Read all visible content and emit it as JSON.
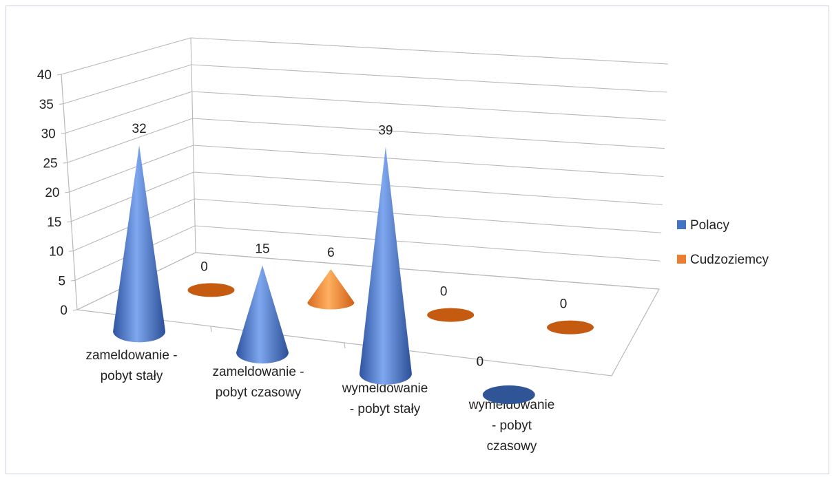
{
  "chart_data": {
    "type": "bar",
    "shape": "cone",
    "projection": "3d",
    "categories": [
      [
        "zameldowanie -",
        "pobyt stały"
      ],
      [
        "zameldowanie -",
        "pobyt czasowy"
      ],
      [
        "wymeldowanie",
        "- pobyt stały"
      ],
      [
        "wymeldowanie",
        "- pobyt",
        "czasowy"
      ]
    ],
    "series": [
      {
        "name": "Polacy",
        "values": [
          32,
          15,
          39,
          0
        ],
        "color": "#4472c4"
      },
      {
        "name": "Cudzoziemcy",
        "values": [
          0,
          6,
          0,
          0
        ],
        "color": "#ed7d31"
      }
    ],
    "ylim": [
      0,
      40
    ],
    "yticks": [
      0,
      5,
      10,
      15,
      20,
      25,
      30,
      35,
      40
    ],
    "grid": true,
    "legend": "right",
    "data_labels": true
  }
}
